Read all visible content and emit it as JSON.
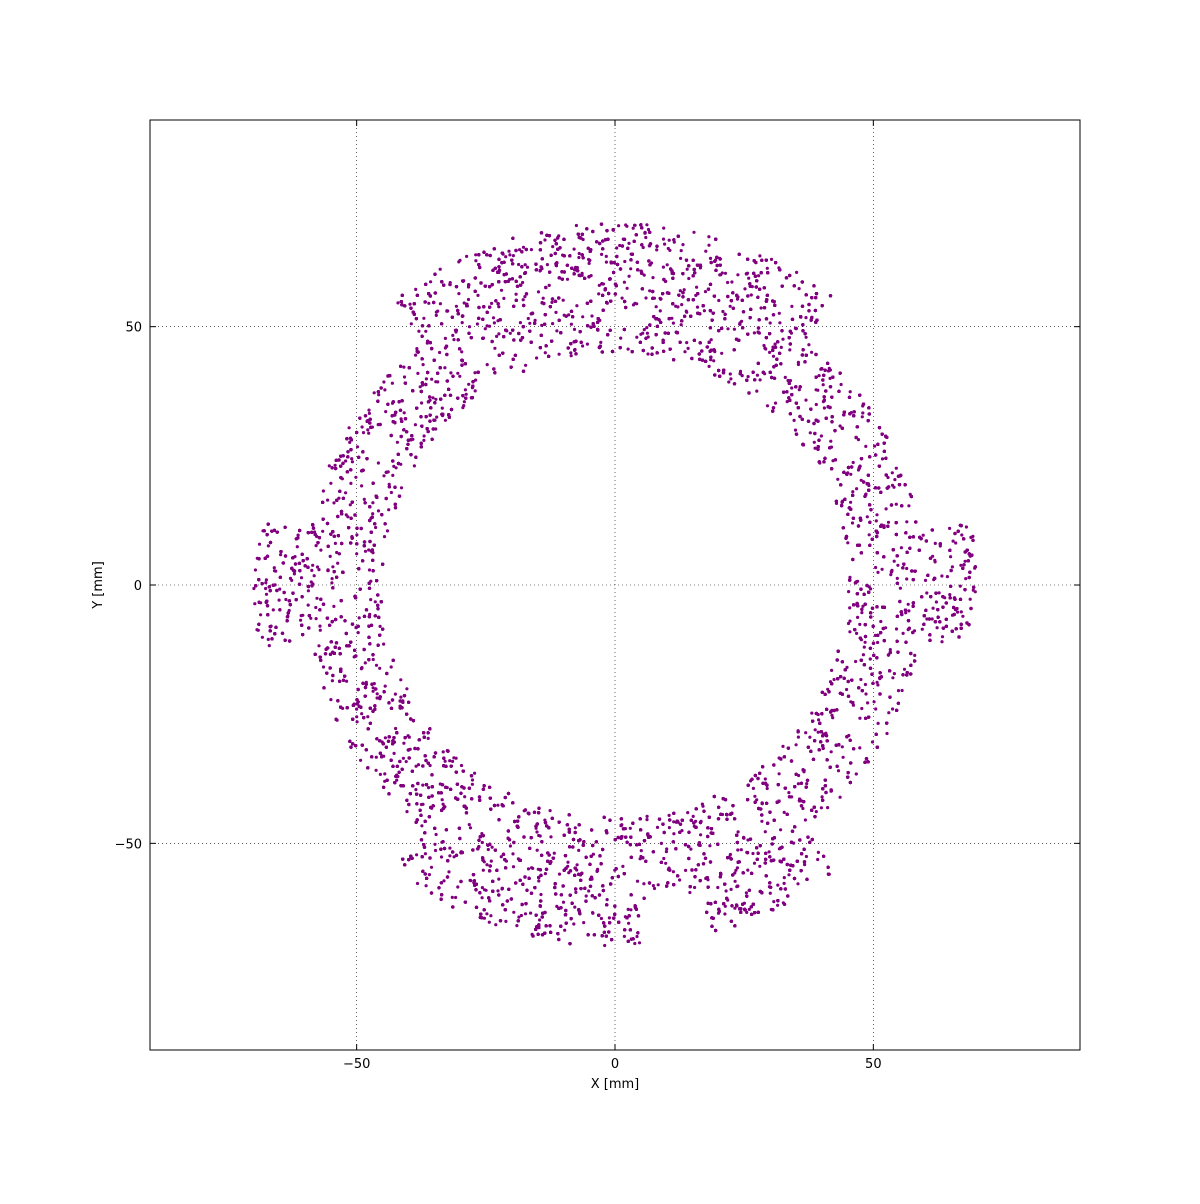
{
  "chart_data": {
    "type": "scatter",
    "title": "",
    "xlabel": "X [mm]",
    "ylabel": "Y [mm]",
    "xlim": [
      -90,
      90
    ],
    "ylim": [
      -90,
      90
    ],
    "grid": true,
    "legend": "none",
    "x_ticks": [
      {
        "value": -50,
        "label": "−50"
      },
      {
        "value": 0,
        "label": "0"
      },
      {
        "value": 50,
        "label": "50"
      }
    ],
    "y_ticks": [
      {
        "value": -50,
        "label": "−50"
      },
      {
        "value": 0,
        "label": "0"
      },
      {
        "value": 50,
        "label": "50"
      }
    ],
    "marker_color": "#800080",
    "point_count": 15000,
    "sampled_region": {
      "inner_radius": 45,
      "outer_radius": 70,
      "base_outer_radius": 60,
      "outer_lobes": [
        {
          "center_deg": 90,
          "half_width_deg": 38
        },
        {
          "center_deg": 270,
          "half_width_deg": 38
        },
        {
          "center_deg": 0,
          "half_width_deg": 10
        },
        {
          "center_deg": 180,
          "half_width_deg": 10
        }
      ],
      "bolt_hole_radius": 2.4,
      "bolt_holes": [
        {
          "x": 0,
          "y": 52
        },
        {
          "x": 26,
          "y": 45
        },
        {
          "x": 45,
          "y": 26
        },
        {
          "x": 52,
          "y": 0
        },
        {
          "x": 45,
          "y": -26
        },
        {
          "x": 26,
          "y": -45
        },
        {
          "x": 0,
          "y": -52
        },
        {
          "x": -26,
          "y": -45
        },
        {
          "x": -45,
          "y": -26
        },
        {
          "x": -52,
          "y": 0
        },
        {
          "x": -45,
          "y": 26
        },
        {
          "x": -26,
          "y": 45
        }
      ],
      "notch": {
        "x": 11,
        "y": -65,
        "r": 6.5
      }
    }
  }
}
